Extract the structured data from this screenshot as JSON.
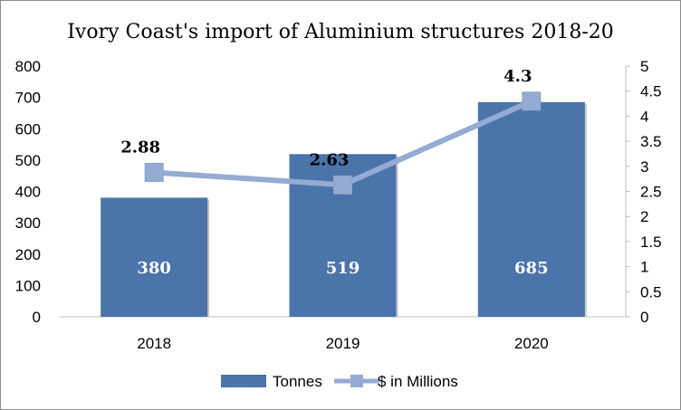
{
  "chart_data": {
    "type": "bar",
    "title": "Ivory Coast's import of Aluminium structures 2018-20",
    "categories": [
      "2018",
      "2019",
      "2020"
    ],
    "series": [
      {
        "name": "Tonnes",
        "type": "bar",
        "axis": "left",
        "values": [
          380,
          519,
          685
        ],
        "color": "#4a74aa"
      },
      {
        "name": "$ in Millions",
        "type": "line",
        "axis": "right",
        "values": [
          2.88,
          2.63,
          4.3
        ],
        "color": "#94abd3"
      }
    ],
    "bar_labels": [
      "380",
      "519",
      "685"
    ],
    "point_labels": [
      "2.88",
      "2.63",
      "4.3"
    ],
    "y_left": {
      "min": 0,
      "max": 800,
      "ticks": [
        "0",
        "100",
        "200",
        "300",
        "400",
        "500",
        "600",
        "700",
        "800"
      ]
    },
    "y_right": {
      "min": 0,
      "max": 5,
      "ticks": [
        "0",
        "0.5",
        "1",
        "1.5",
        "2",
        "2.5",
        "3",
        "3.5",
        "4",
        "4.5",
        "5"
      ]
    },
    "grid": false,
    "legend_position": "bottom"
  }
}
